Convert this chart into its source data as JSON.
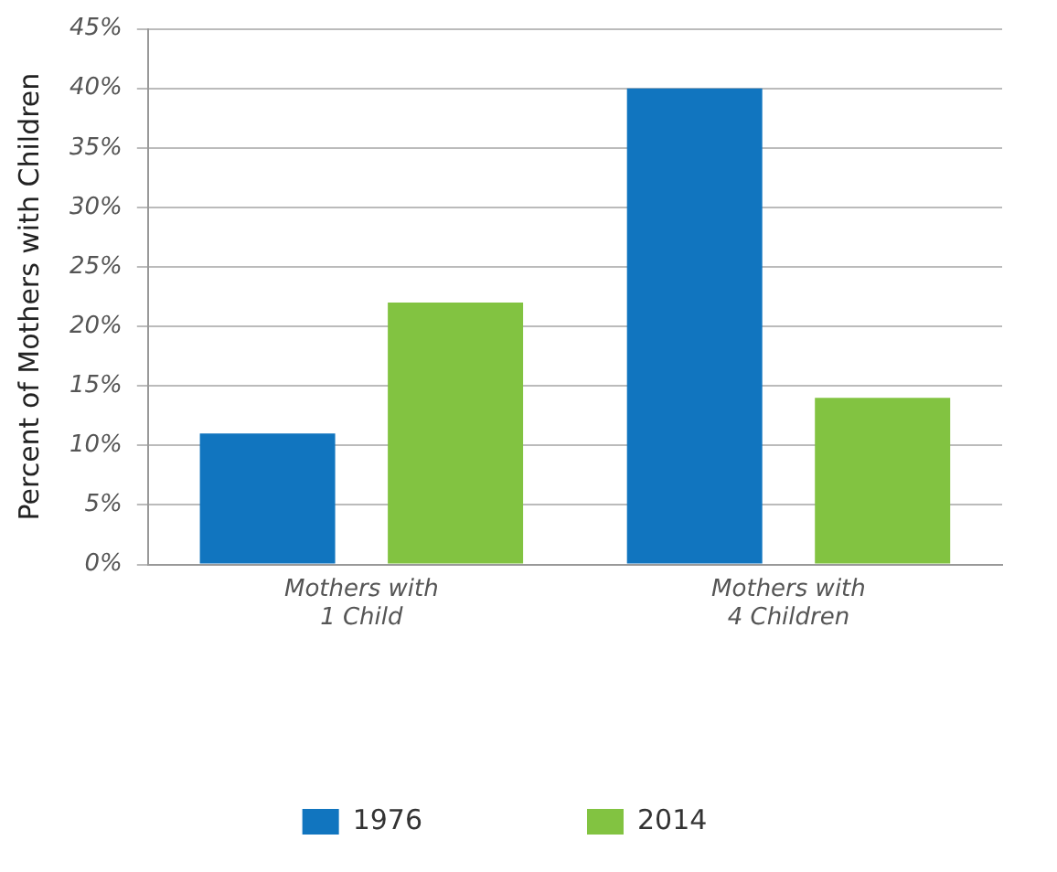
{
  "chart_data": {
    "type": "bar",
    "ylabel": "Percent of Mothers with Children",
    "categories": [
      "Mothers with\n1 Child",
      "Mothers with\n4 Children"
    ],
    "series": [
      {
        "name": "1976",
        "color": "#1175bf",
        "values": [
          11,
          40
        ]
      },
      {
        "name": "2014",
        "color": "#82c341",
        "values": [
          22,
          14
        ]
      }
    ],
    "ylim": [
      0,
      45
    ],
    "yticks": [
      {
        "value": 0,
        "label": "0%"
      },
      {
        "value": 5,
        "label": "5%"
      },
      {
        "value": 10,
        "label": "10%"
      },
      {
        "value": 15,
        "label": "15%"
      },
      {
        "value": 20,
        "label": "20%"
      },
      {
        "value": 25,
        "label": "25%"
      },
      {
        "value": 30,
        "label": "30%"
      },
      {
        "value": 35,
        "label": "35%"
      },
      {
        "value": 40,
        "label": "40%"
      },
      {
        "value": 45,
        "label": "45%"
      }
    ],
    "grid": "y",
    "legend": "bottom"
  }
}
